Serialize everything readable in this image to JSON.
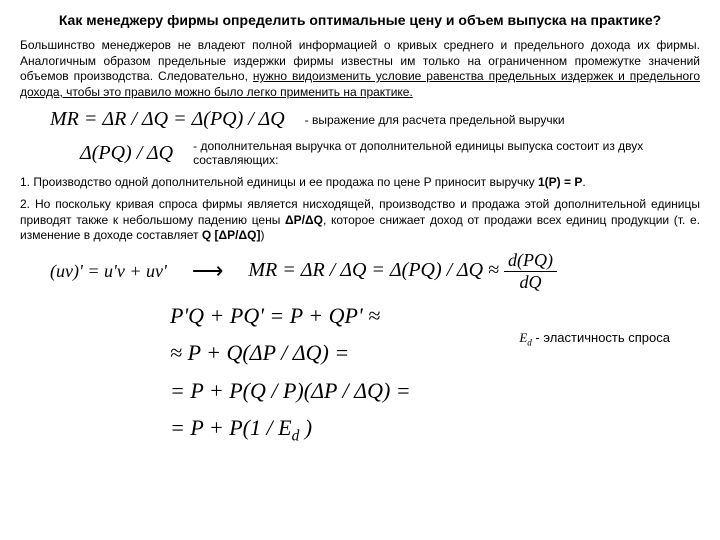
{
  "title": "Как менеджеру фирмы определить оптимальные цену и объем выпуска на практике?",
  "para1_a": "Большинство менеджеров не владеют полной информацией о кривых среднего и предельного дохода их фирмы. Аналогичным образом предельные издержки фирмы известны им только на ограниченном промежутке значений объемов производства. Следовательно, ",
  "para1_u": "нужно видоизменить условие равенства предельных издержек и предельного дохода, чтобы это правило можно было легко применить на практике.",
  "formula1": "MR = ΔR / ΔQ = Δ(PQ) / ΔQ",
  "formula1_desc": "- выражение для расчета предельной выручки",
  "formula2": "Δ(PQ) / ΔQ",
  "formula2_desc": "- дополнительная выручка от дополнительной единицы выпуска состоит из двух составляющих:",
  "list1_a": "1. Производство одной дополнительной единицы и ее продажа по цене P приносит выручку ",
  "list1_b": "1(P) = P",
  "list2_a": "2. Но поскольку кривая спроса фирмы является нисходящей, производство и продажа этой дополнительной единицы приводят также к небольшому падению цены ",
  "list2_b": "ΔP/ΔQ",
  "list2_c": ", которое снижает доход от продажи всех единиц продукции (т. е. изменение в доходе составляет ",
  "list2_d": "Q [ΔP/ΔQ]",
  "list2_e": ")",
  "uv": "(uv)' = u'v + uv'",
  "mr2": "MR = ΔR / ΔQ = Δ(PQ) / ΔQ ≈ ",
  "frac_num": "d(PQ)",
  "frac_den": "dQ",
  "d1": "P'Q + PQ' = P + QP' ≈",
  "d2": "≈ P + Q(ΔP / ΔQ) =",
  "d3": "= P + P(Q / P)(ΔP / ΔQ) =",
  "d4_a": "= P + P(1 / E",
  "d4_b": ")",
  "ed_sym": "E",
  "ed_text": " - эластичность спроса"
}
